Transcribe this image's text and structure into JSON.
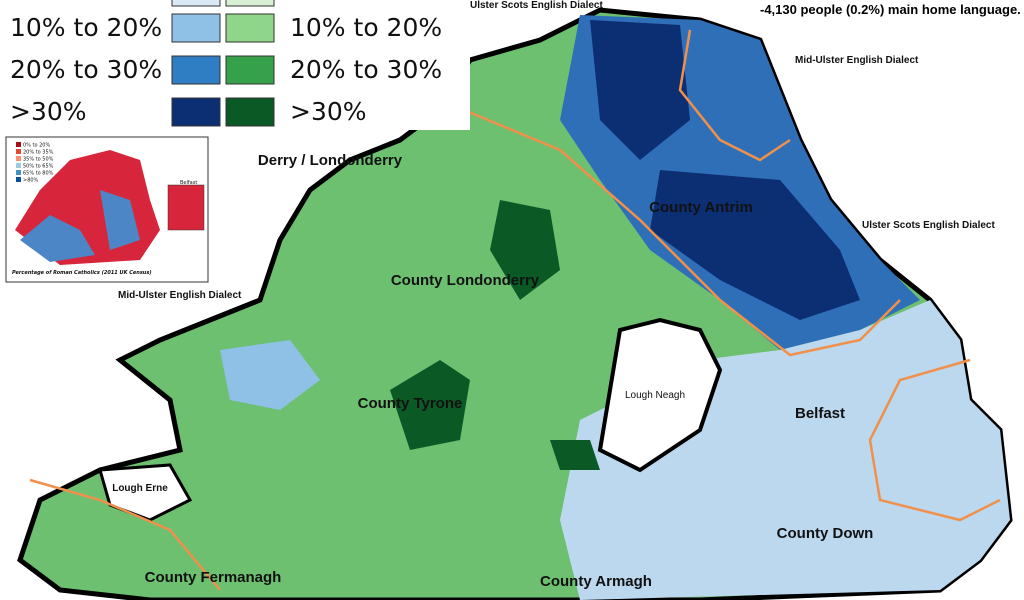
{
  "legend": {
    "rows": [
      {
        "blue": {
          "label": "10% to 20%",
          "color": "#8fc1e6"
        },
        "green": {
          "label": "10% to 20%",
          "color": "#8fd68a"
        }
      },
      {
        "blue": {
          "label": "20% to 30%",
          "color": "#2f7ec4"
        },
        "green": {
          "label": "20% to 30%",
          "color": "#35a14a"
        }
      },
      {
        "blue": {
          "label": ">30%",
          "color": "#0c2f74"
        },
        "green": {
          "label": ">30%",
          "color": "#0b5a26"
        }
      }
    ]
  },
  "header": {
    "dialect": "Ulster Scots English Dialect",
    "note": "-4,130 people (0.2%) main home language."
  },
  "labels": {
    "mid_ulster_ne": "Mid-Ulster English Dialect",
    "ulster_scots_e": "Ulster Scots English Dialect",
    "derry": "Derry / Londonderry",
    "antrim": "County Antrim",
    "londonderry": "County Londonderry",
    "mid_ulster_w": "Mid-Ulster English Dialect",
    "tyrone": "County Tyrone",
    "neagh": "Lough Neagh",
    "belfast": "Belfast",
    "erne": "Lough Erne",
    "down": "County Down",
    "fermanagh": "County Fermanagh",
    "armagh": "County Armagh"
  },
  "inset": {
    "legend": [
      "0% to 20%",
      "20% to 35%",
      "35% to 50%",
      "50% to 65%",
      "65% to 80%",
      ">80%"
    ],
    "belfast": "Belfast",
    "caption": "Percentage of Roman Catholics (2011 UK Census)"
  }
}
